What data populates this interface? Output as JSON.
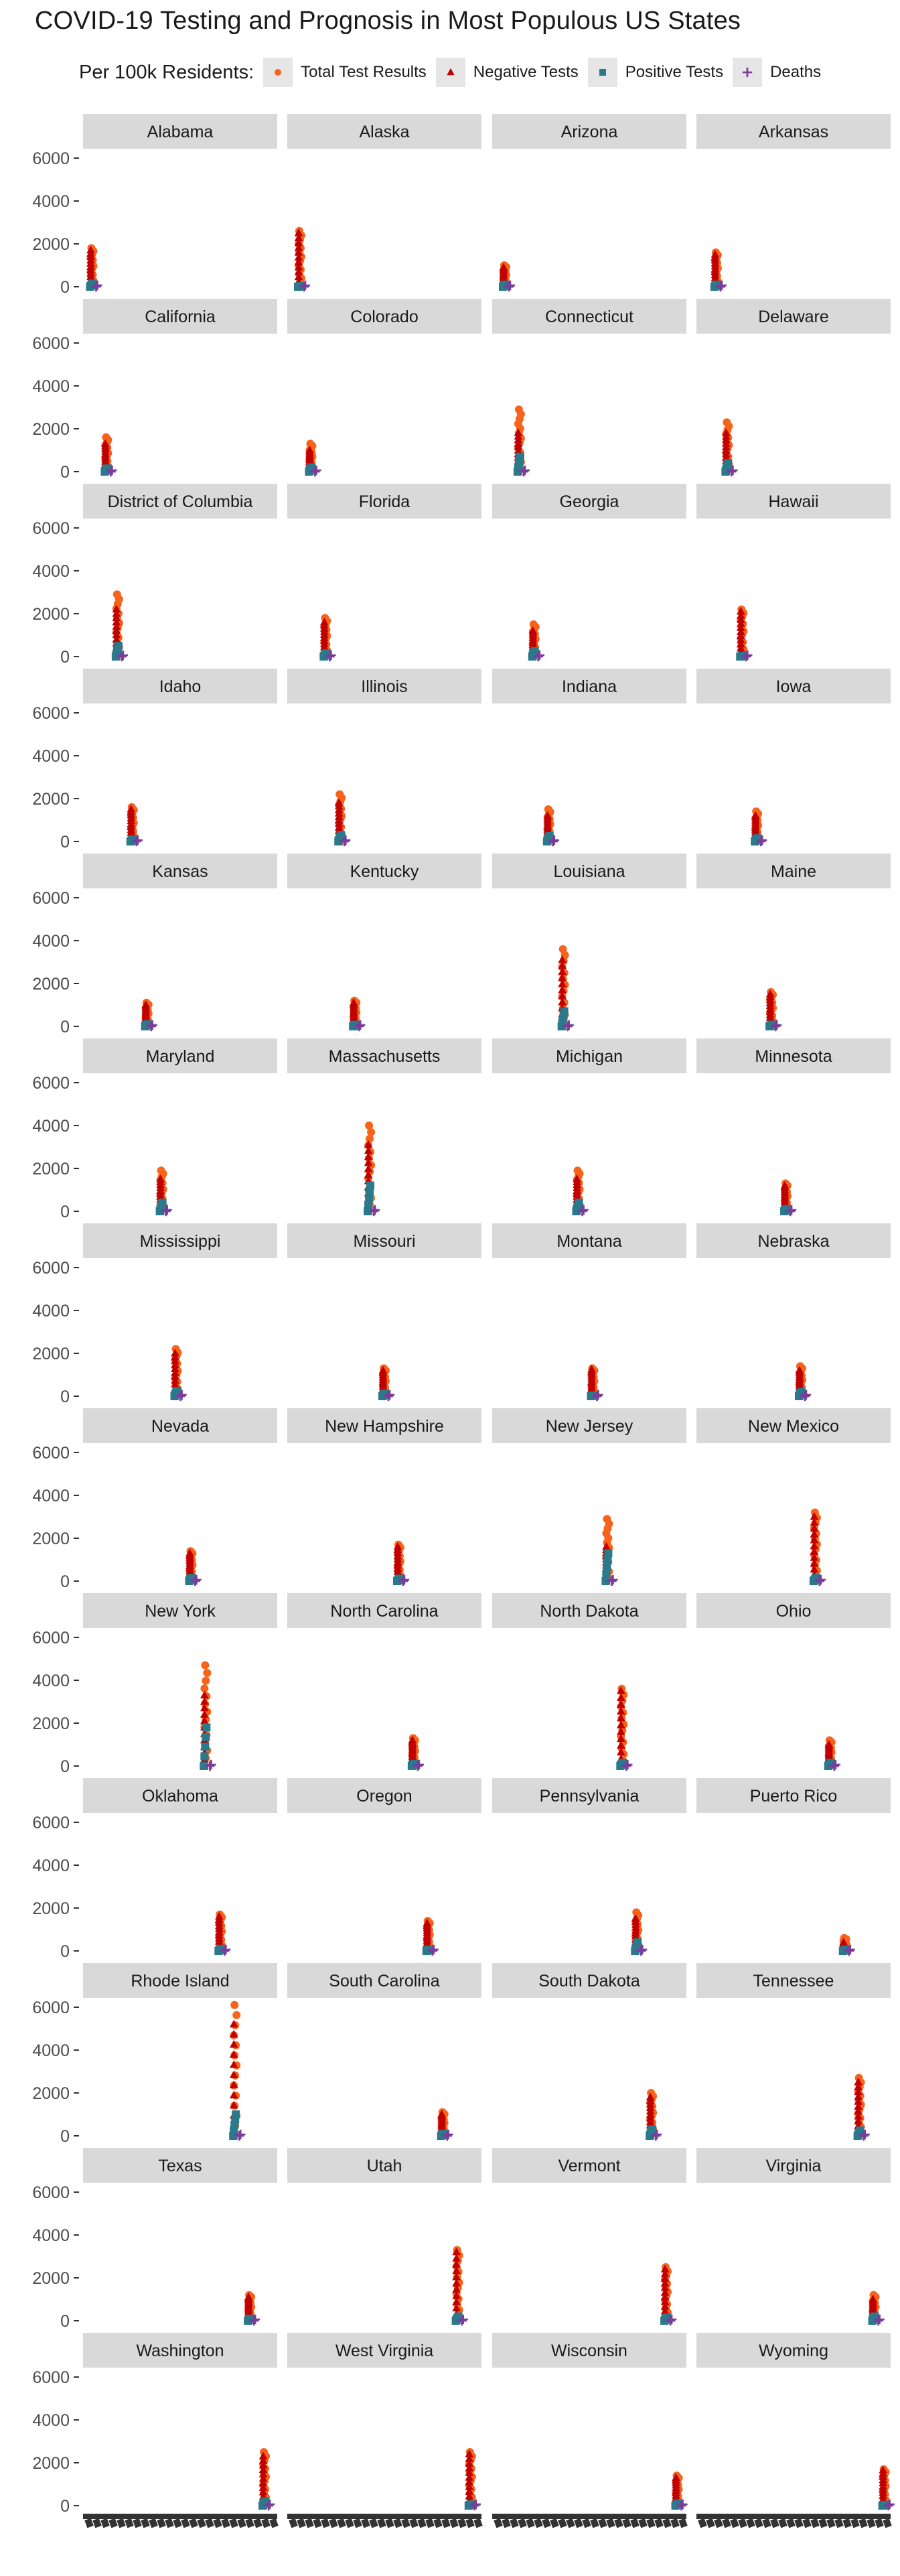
{
  "chart_data": {
    "type": "scatter",
    "title": "COVID-19 Testing and Prognosis in Most Populous US States",
    "legend": {
      "title": "Per 100k Residents:",
      "position": "top",
      "entries": [
        {
          "name": "Total Test Results",
          "shape": "circle",
          "color": "#f7631b"
        },
        {
          "name": "Negative Tests",
          "shape": "triangle",
          "color": "#c00000"
        },
        {
          "name": "Positive Tests",
          "shape": "square",
          "color": "#2a7a8c"
        },
        {
          "name": "Deaths",
          "shape": "plus",
          "color": "#7a3d9a"
        }
      ]
    },
    "ylim": [
      0,
      6000
    ],
    "y_ticks": [
      "0",
      "2000",
      "4000",
      "6000"
    ],
    "facet_columns": 4,
    "grid": false,
    "note": "Each facet plots per-100k values of the four measures against date; x-axis tick labels are rendered overlapping and illegible. Values below are approximate readings: max = highest total test results per 100k, neg_max = highest negative tests per 100k, pos_max = highest positive tests per 100k, x_pos = horizontal position of the point column within the panel (0 = left edge, 1 = right edge).",
    "series": [
      {
        "name": "Alabama",
        "max": 1800,
        "neg_max": 1700,
        "pos_max": 150,
        "x_pos": 0.02
      },
      {
        "name": "Alaska",
        "max": 2600,
        "neg_max": 2500,
        "pos_max": 30,
        "x_pos": 0.04
      },
      {
        "name": "Arizona",
        "max": 1000,
        "neg_max": 900,
        "pos_max": 100,
        "x_pos": 0.04
      },
      {
        "name": "Arkansas",
        "max": 1600,
        "neg_max": 1500,
        "pos_max": 100,
        "x_pos": 0.08
      },
      {
        "name": "California",
        "max": 1600,
        "neg_max": 1300,
        "pos_max": 150,
        "x_pos": 0.1
      },
      {
        "name": "Colorado",
        "max": 1300,
        "neg_max": 1000,
        "pos_max": 200,
        "x_pos": 0.1
      },
      {
        "name": "Connecticut",
        "max": 2900,
        "neg_max": 1800,
        "pos_max": 700,
        "x_pos": 0.12
      },
      {
        "name": "Delaware",
        "max": 2300,
        "neg_max": 1800,
        "pos_max": 400,
        "x_pos": 0.14
      },
      {
        "name": "District of Columbia",
        "max": 2900,
        "neg_max": 2200,
        "pos_max": 500,
        "x_pos": 0.16
      },
      {
        "name": "Florida",
        "max": 1800,
        "neg_max": 1600,
        "pos_max": 150,
        "x_pos": 0.18
      },
      {
        "name": "Georgia",
        "max": 1500,
        "neg_max": 1200,
        "pos_max": 250,
        "x_pos": 0.2
      },
      {
        "name": "Hawaii",
        "max": 2200,
        "neg_max": 2100,
        "pos_max": 30,
        "x_pos": 0.22
      },
      {
        "name": "Idaho",
        "max": 1600,
        "neg_max": 1500,
        "pos_max": 100,
        "x_pos": 0.24
      },
      {
        "name": "Illinois",
        "max": 2200,
        "neg_max": 1800,
        "pos_max": 300,
        "x_pos": 0.26
      },
      {
        "name": "Indiana",
        "max": 1500,
        "neg_max": 1200,
        "pos_max": 250,
        "x_pos": 0.28
      },
      {
        "name": "Iowa",
        "max": 1400,
        "neg_max": 1200,
        "pos_max": 150,
        "x_pos": 0.3
      },
      {
        "name": "Kansas",
        "max": 1100,
        "neg_max": 1000,
        "pos_max": 100,
        "x_pos": 0.32
      },
      {
        "name": "Kentucky",
        "max": 1200,
        "neg_max": 1100,
        "pos_max": 80,
        "x_pos": 0.34
      },
      {
        "name": "Louisiana",
        "max": 3600,
        "neg_max": 3100,
        "pos_max": 700,
        "x_pos": 0.36
      },
      {
        "name": "Maine",
        "max": 1600,
        "neg_max": 1500,
        "pos_max": 80,
        "x_pos": 0.38
      },
      {
        "name": "Maryland",
        "max": 1900,
        "neg_max": 1500,
        "pos_max": 400,
        "x_pos": 0.4
      },
      {
        "name": "Massachusetts",
        "max": 4000,
        "neg_max": 3100,
        "pos_max": 1200,
        "x_pos": 0.42
      },
      {
        "name": "Michigan",
        "max": 1900,
        "neg_max": 1500,
        "pos_max": 400,
        "x_pos": 0.44
      },
      {
        "name": "Minnesota",
        "max": 1300,
        "neg_max": 1200,
        "pos_max": 100,
        "x_pos": 0.46
      },
      {
        "name": "Mississippi",
        "max": 2200,
        "neg_max": 2000,
        "pos_max": 250,
        "x_pos": 0.48
      },
      {
        "name": "Missouri",
        "max": 1300,
        "neg_max": 1200,
        "pos_max": 120,
        "x_pos": 0.5
      },
      {
        "name": "Montana",
        "max": 1300,
        "neg_max": 1250,
        "pos_max": 40,
        "x_pos": 0.52
      },
      {
        "name": "Nebraska",
        "max": 1400,
        "neg_max": 1200,
        "pos_max": 200,
        "x_pos": 0.54
      },
      {
        "name": "Nevada",
        "max": 1400,
        "neg_max": 1300,
        "pos_max": 150,
        "x_pos": 0.56
      },
      {
        "name": "New Hampshire",
        "max": 1700,
        "neg_max": 1600,
        "pos_max": 120,
        "x_pos": 0.58
      },
      {
        "name": "New Jersey",
        "max": 2900,
        "neg_max": 1600,
        "pos_max": 1300,
        "x_pos": 0.6
      },
      {
        "name": "New Mexico",
        "max": 3200,
        "neg_max": 3000,
        "pos_max": 150,
        "x_pos": 0.62
      },
      {
        "name": "New York",
        "max": 4700,
        "neg_max": 3300,
        "pos_max": 1800,
        "x_pos": 0.64
      },
      {
        "name": "North Carolina",
        "max": 1300,
        "neg_max": 1200,
        "pos_max": 100,
        "x_pos": 0.66
      },
      {
        "name": "North Dakota",
        "max": 3600,
        "neg_max": 3500,
        "pos_max": 150,
        "x_pos": 0.68
      },
      {
        "name": "Ohio",
        "max": 1200,
        "neg_max": 1000,
        "pos_max": 150,
        "x_pos": 0.7
      },
      {
        "name": "Oklahoma",
        "max": 1700,
        "neg_max": 1600,
        "pos_max": 100,
        "x_pos": 0.72
      },
      {
        "name": "Oregon",
        "max": 1400,
        "neg_max": 1300,
        "pos_max": 60,
        "x_pos": 0.74
      },
      {
        "name": "Pennsylvania",
        "max": 1800,
        "neg_max": 1500,
        "pos_max": 400,
        "x_pos": 0.76
      },
      {
        "name": "Puerto Rico",
        "max": 600,
        "neg_max": 400,
        "pos_max": 60,
        "x_pos": 0.78
      },
      {
        "name": "Rhode Island",
        "max": 6100,
        "neg_max": 5200,
        "pos_max": 1000,
        "x_pos": 0.8
      },
      {
        "name": "South Carolina",
        "max": 1100,
        "neg_max": 1000,
        "pos_max": 100,
        "x_pos": 0.82
      },
      {
        "name": "South Dakota",
        "max": 2000,
        "neg_max": 1800,
        "pos_max": 300,
        "x_pos": 0.84
      },
      {
        "name": "Tennessee",
        "max": 2700,
        "neg_max": 2500,
        "pos_max": 250,
        "x_pos": 0.86
      },
      {
        "name": "Texas",
        "max": 1200,
        "neg_max": 1100,
        "pos_max": 100,
        "x_pos": 0.88
      },
      {
        "name": "Utah",
        "max": 3300,
        "neg_max": 3200,
        "pos_max": 200,
        "x_pos": 0.9
      },
      {
        "name": "Vermont",
        "max": 2500,
        "neg_max": 2400,
        "pos_max": 150,
        "x_pos": 0.92
      },
      {
        "name": "Virginia",
        "max": 1200,
        "neg_max": 1000,
        "pos_max": 200,
        "x_pos": 0.94
      },
      {
        "name": "Washington",
        "max": 2500,
        "neg_max": 2300,
        "pos_max": 200,
        "x_pos": 0.96
      },
      {
        "name": "West Virginia",
        "max": 2500,
        "neg_max": 2400,
        "pos_max": 60,
        "x_pos": 0.97
      },
      {
        "name": "Wisconsin",
        "max": 1400,
        "neg_max": 1300,
        "pos_max": 100,
        "x_pos": 0.98
      },
      {
        "name": "Wyoming",
        "max": 1700,
        "neg_max": 1650,
        "pos_max": 40,
        "x_pos": 0.995
      }
    ]
  }
}
